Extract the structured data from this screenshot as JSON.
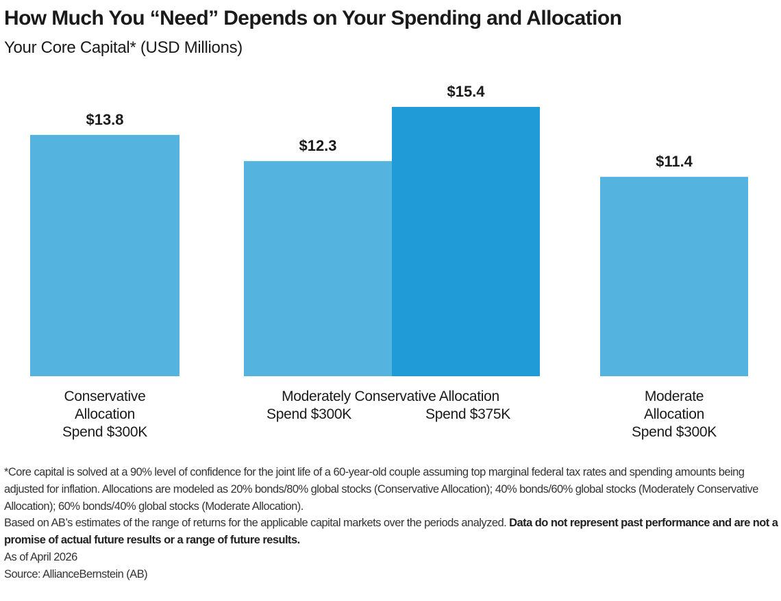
{
  "title": "How Much You “Need” Depends on Your Spending and Allocation",
  "subtitle": "Your Core Capital* (USD Millions)",
  "colors": {
    "light_bar": "#55b3e0",
    "dark_bar": "#209bd7",
    "label": "#1a1a1a"
  },
  "chart_data": {
    "type": "bar",
    "title": "How Much You “Need” Depends on Your Spending and Allocation",
    "subtitle": "Your Core Capital* (USD Millions)",
    "ylabel": "",
    "xlabel": "",
    "grid": false,
    "y_axis_shown": false,
    "bars": [
      {
        "group": "Conservative Allocation",
        "spend": "Spend $300K",
        "value": 13.8,
        "label": "$13.8",
        "color": "#55b3e0"
      },
      {
        "group": "Moderately Conservative Allocation",
        "spend": "Spend $300K",
        "value": 12.3,
        "label": "$12.3",
        "color": "#55b3e0"
      },
      {
        "group": "Moderately Conservative Allocation",
        "spend": "Spend $375K",
        "value": 15.4,
        "label": "$15.4",
        "color": "#209bd7"
      },
      {
        "group": "Moderate Allocation",
        "spend": "Spend $300K",
        "value": 11.4,
        "label": "$11.4",
        "color": "#55b3e0"
      }
    ],
    "category_labels": {
      "conservative": [
        "Conservative",
        "Allocation",
        "Spend $300K"
      ],
      "moderately_conservative": "Moderately Conservative Allocation",
      "moderately_conservative_sub": [
        "Spend $300K",
        "Spend $375K"
      ],
      "moderate": [
        "Moderate",
        "Allocation",
        "Spend $300K"
      ]
    }
  },
  "footnotes": {
    "note1": "*Core capital is solved at a 90% level of confidence for the joint life of a 60-year-old couple assuming top marginal federal tax rates and spending amounts being adjusted for inflation. Allocations are modeled as 20% bonds/80% global stocks (Conservative Allocation); 40% bonds/60% global stocks (Moderately Conservative Allocation); 60% bonds/40% global stocks (Moderate Allocation).",
    "note2": "Based on AB’s estimates of the range of returns for the applicable capital markets over the periods analyzed. ",
    "note2_bold": "Data do not represent past performance and are not a promise of actual future results or a range of future results.",
    "as_of": "As of April 2026",
    "source": "Source: AllianceBernstein (AB)"
  }
}
